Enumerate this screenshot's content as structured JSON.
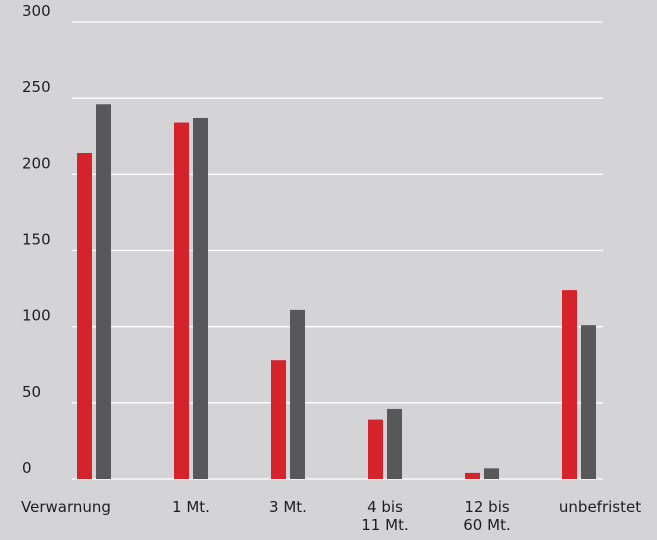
{
  "chart_data": {
    "type": "bar",
    "categories": [
      "Verwarnung",
      "1 Mt.",
      "3 Mt.",
      "4 bis 11 Mt.",
      "12 bis 60 Mt.",
      "unbefristet"
    ],
    "category_lines": [
      [
        "Verwarnung"
      ],
      [
        "1 Mt."
      ],
      [
        "3 Mt."
      ],
      [
        "4  bis",
        "11 Mt."
      ],
      [
        "12 bis",
        "60 Mt."
      ],
      [
        "unbefristet"
      ]
    ],
    "series": [
      {
        "color": "#d5232b",
        "values": [
          214,
          234,
          78,
          39,
          4,
          124
        ]
      },
      {
        "color": "#58585a",
        "values": [
          246,
          237,
          111,
          46,
          7,
          101
        ]
      }
    ],
    "yticks": [
      "0",
      "50",
      "100",
      "150",
      "200",
      "250",
      "300"
    ],
    "ylim": [
      0,
      300
    ],
    "grid": true,
    "grid_color": "#ffffff",
    "background": "#d4d4d6",
    "title": "",
    "xlabel": "",
    "ylabel": ""
  }
}
